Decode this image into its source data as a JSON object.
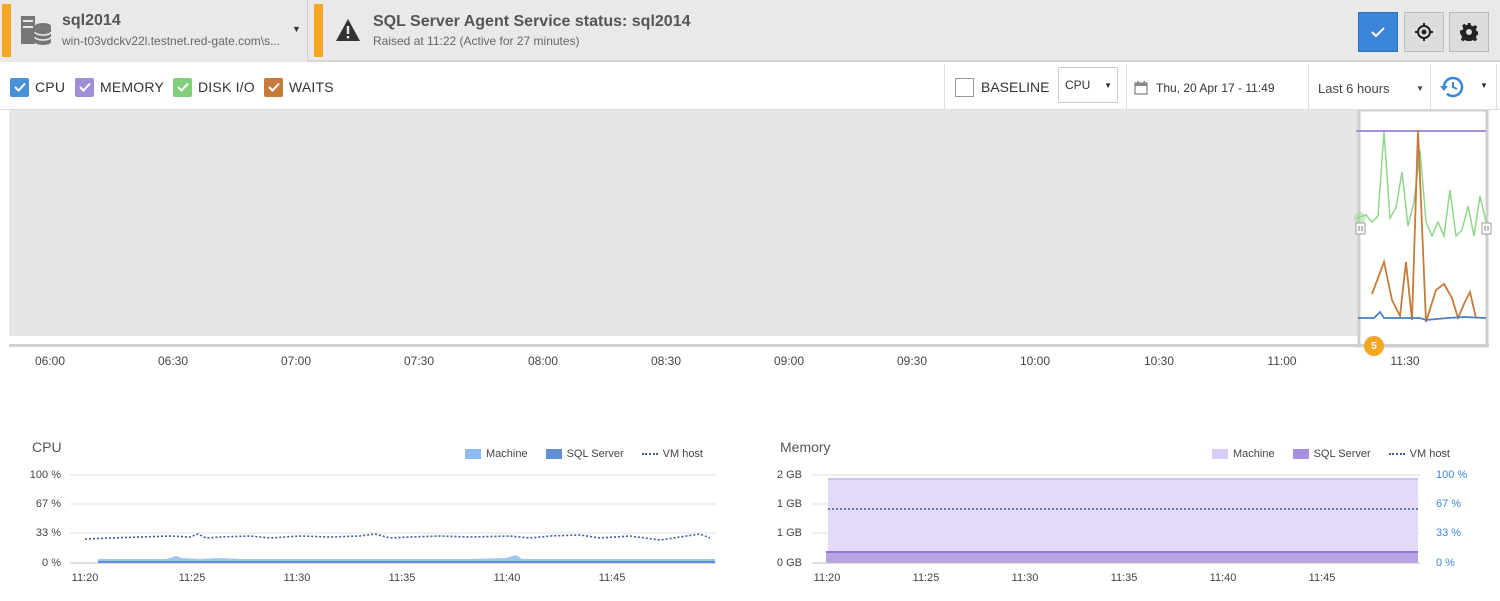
{
  "header": {
    "server_name": "sql2014",
    "server_host": "win-t03vdckv22l.testnet.red-gate.com\\s...",
    "alert_title": "SQL Server Agent Service status: sql2014",
    "alert_subtitle": "Raised at 11:22 (Active for 27 minutes)",
    "colors": {
      "accent": "#f5a623",
      "primary_button": "#3c86d9"
    },
    "icons": [
      "database-server-icon",
      "warning-triangle-icon",
      "checkmark-icon",
      "target-icon",
      "gear-icon"
    ]
  },
  "toolbar": {
    "legend": [
      {
        "label": "CPU",
        "color": "#4a90d9"
      },
      {
        "label": "MEMORY",
        "color": "#a08fd8"
      },
      {
        "label": "DISK I/O",
        "color": "#82cf7e"
      },
      {
        "label": "WAITS",
        "color": "#c87a3a"
      }
    ],
    "baseline_label": "BASELINE",
    "baseline_metric": "CPU",
    "date": "Thu, 20 Apr 17 - 11:49",
    "range": "Last 6 hours"
  },
  "overview": {
    "ticks": [
      "06:00",
      "06:30",
      "07:00",
      "07:30",
      "08:00",
      "08:30",
      "09:00",
      "09:30",
      "10:00",
      "10:30",
      "11:00",
      "11:30"
    ],
    "alert_count": "5"
  },
  "cpu_chart": {
    "title": "CPU",
    "legend": {
      "machine": "Machine",
      "sql_server": "SQL Server",
      "vm_host": "VM host"
    },
    "y_ticks": [
      "100 %",
      "67 %",
      "33 %",
      "0 %"
    ],
    "x_ticks": [
      "11:20",
      "11:25",
      "11:30",
      "11:35",
      "11:40",
      "11:45"
    ]
  },
  "memory_chart": {
    "title": "Memory",
    "legend": {
      "machine": "Machine",
      "sql_server": "SQL Server",
      "vm_host": "VM host"
    },
    "y_ticks": [
      "2 GB",
      "1 GB",
      "1 GB",
      "0 GB"
    ],
    "y_ticks_right": [
      "100 %",
      "67 %",
      "33 %",
      "0 %"
    ],
    "x_ticks": [
      "11:20",
      "11:25",
      "11:30",
      "11:35",
      "11:40",
      "11:45"
    ]
  }
}
